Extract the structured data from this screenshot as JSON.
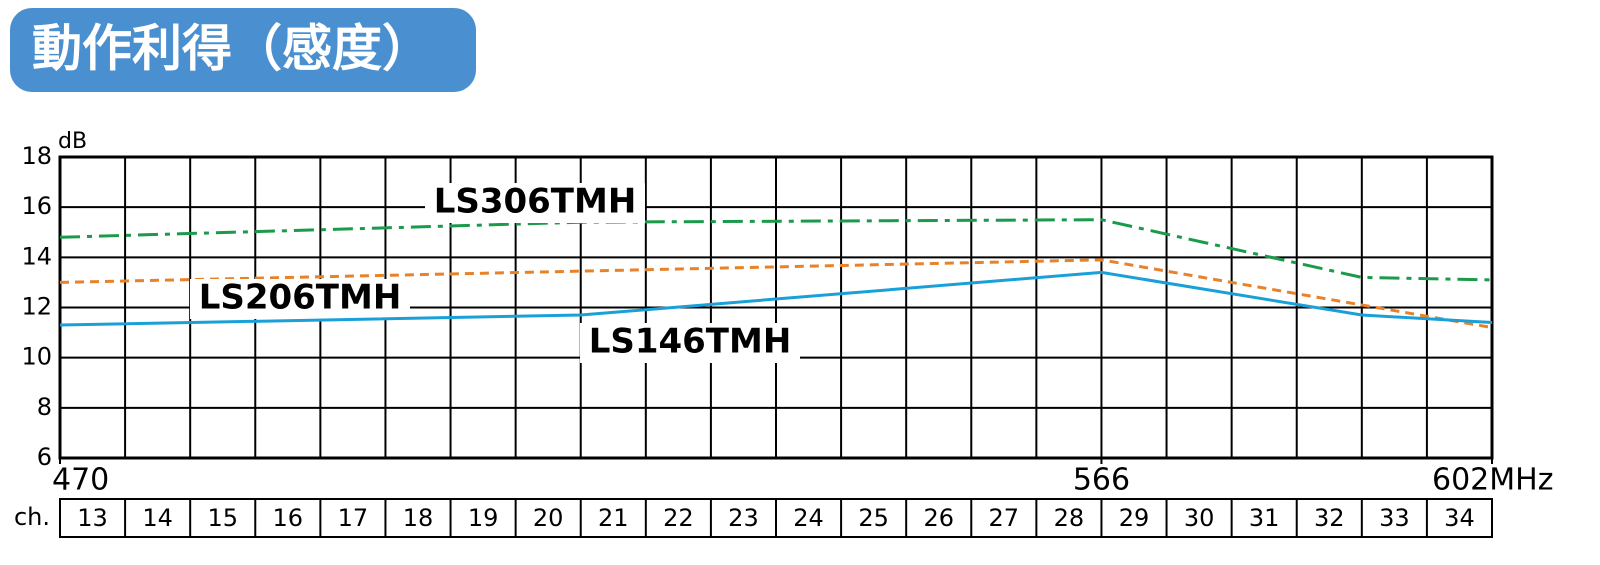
{
  "chart_data": {
    "type": "line",
    "title": "動作利得（感度）",
    "y_unit": "dB",
    "xlim": [
      470,
      602
    ],
    "xticks": [
      470,
      566,
      {
        "value": 602,
        "label": "602MHz"
      }
    ],
    "ylim": [
      6,
      18
    ],
    "yticks": [
      6,
      8,
      10,
      12,
      14,
      16,
      18
    ],
    "grid": true,
    "channel_label": "ch.",
    "channels": [
      13,
      14,
      15,
      16,
      17,
      18,
      19,
      20,
      21,
      22,
      23,
      24,
      25,
      26,
      27,
      28,
      29,
      30,
      31,
      32,
      33,
      34
    ],
    "series": [
      {
        "name": "LS306TMH",
        "color": "#1a9a4a",
        "style": "dashdot",
        "x": [
          470,
          518,
          566,
          590,
          602
        ],
        "values": [
          14.8,
          15.4,
          15.5,
          13.2,
          13.1
        ]
      },
      {
        "name": "LS206TMH",
        "color": "#e8822a",
        "style": "dashed",
        "x": [
          470,
          566,
          602
        ],
        "values": [
          13.0,
          13.9,
          11.2
        ]
      },
      {
        "name": "LS146TMH",
        "color": "#1aa0d8",
        "style": "solid",
        "x": [
          470,
          518,
          566,
          590,
          602
        ],
        "values": [
          11.3,
          11.7,
          13.4,
          11.7,
          11.4
        ]
      }
    ]
  }
}
